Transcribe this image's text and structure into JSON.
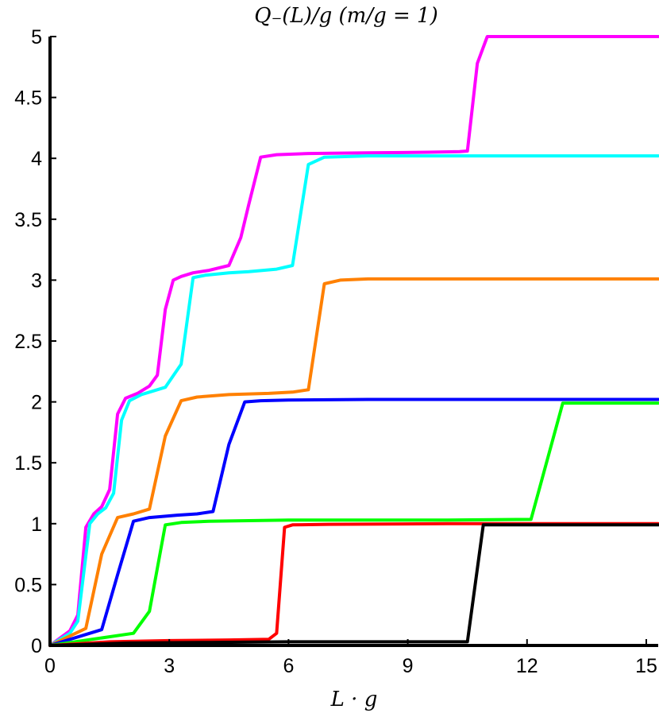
{
  "chart_data": {
    "type": "line",
    "title": "Q₋(L)/g (m/g = 1)",
    "xlabel": "L · g",
    "ylabel": "",
    "xlim": [
      0,
      15.3
    ],
    "ylim": [
      0,
      5
    ],
    "xticks": [
      0,
      3,
      6,
      9,
      12,
      15
    ],
    "yticks": [
      0,
      0.5,
      1,
      1.5,
      2,
      2.5,
      3,
      3.5,
      4,
      4.5,
      5
    ],
    "xtick_labels": [
      "0",
      "3",
      "6",
      "9",
      "12",
      "15"
    ],
    "ytick_labels": [
      "0",
      "0.5",
      "1",
      "1.5",
      "2",
      "2.5",
      "3",
      "3.5",
      "4",
      "4.5",
      "5"
    ],
    "grid": false,
    "legend": "none",
    "series": [
      {
        "color": "#ff00ff",
        "points": [
          [
            0,
            0
          ],
          [
            0.5,
            0.12
          ],
          [
            0.7,
            0.25
          ],
          [
            0.9,
            0.97
          ],
          [
            1.1,
            1.08
          ],
          [
            1.3,
            1.14
          ],
          [
            1.5,
            1.28
          ],
          [
            1.7,
            1.9
          ],
          [
            1.9,
            2.03
          ],
          [
            2.2,
            2.07
          ],
          [
            2.5,
            2.13
          ],
          [
            2.7,
            2.22
          ],
          [
            2.9,
            2.76
          ],
          [
            3.1,
            3.0
          ],
          [
            3.3,
            3.03
          ],
          [
            3.6,
            3.06
          ],
          [
            4.0,
            3.08
          ],
          [
            4.5,
            3.12
          ],
          [
            4.8,
            3.35
          ],
          [
            5.0,
            3.62
          ],
          [
            5.3,
            4.01
          ],
          [
            5.7,
            4.03
          ],
          [
            6.5,
            4.04
          ],
          [
            8.0,
            4.045
          ],
          [
            9.5,
            4.05
          ],
          [
            10.3,
            4.055
          ],
          [
            10.5,
            4.06
          ],
          [
            10.75,
            4.78
          ],
          [
            11.0,
            5.0
          ],
          [
            15.3,
            5.0
          ]
        ]
      },
      {
        "color": "#00ffff",
        "points": [
          [
            0,
            0
          ],
          [
            0.5,
            0.1
          ],
          [
            0.7,
            0.2
          ],
          [
            1.0,
            1.0
          ],
          [
            1.2,
            1.08
          ],
          [
            1.4,
            1.13
          ],
          [
            1.6,
            1.25
          ],
          [
            1.8,
            1.85
          ],
          [
            2.0,
            2.01
          ],
          [
            2.3,
            2.06
          ],
          [
            2.6,
            2.09
          ],
          [
            2.9,
            2.12
          ],
          [
            3.3,
            2.31
          ],
          [
            3.6,
            3.02
          ],
          [
            3.9,
            3.04
          ],
          [
            4.5,
            3.06
          ],
          [
            5.0,
            3.07
          ],
          [
            5.7,
            3.09
          ],
          [
            6.1,
            3.12
          ],
          [
            6.5,
            3.95
          ],
          [
            6.9,
            4.01
          ],
          [
            8.0,
            4.02
          ],
          [
            10.0,
            4.02
          ],
          [
            15.3,
            4.02
          ]
        ]
      },
      {
        "color": "#ff8000",
        "points": [
          [
            0,
            0
          ],
          [
            0.9,
            0.14
          ],
          [
            1.3,
            0.75
          ],
          [
            1.7,
            1.05
          ],
          [
            2.1,
            1.08
          ],
          [
            2.5,
            1.12
          ],
          [
            2.9,
            1.72
          ],
          [
            3.3,
            2.01
          ],
          [
            3.7,
            2.04
          ],
          [
            4.5,
            2.06
          ],
          [
            5.5,
            2.07
          ],
          [
            6.1,
            2.08
          ],
          [
            6.5,
            2.1
          ],
          [
            6.9,
            2.97
          ],
          [
            7.3,
            3.0
          ],
          [
            8.0,
            3.01
          ],
          [
            10.0,
            3.01
          ],
          [
            15.3,
            3.01
          ]
        ]
      },
      {
        "color": "#0000ff",
        "points": [
          [
            0,
            0
          ],
          [
            1.3,
            0.13
          ],
          [
            1.7,
            0.58
          ],
          [
            2.1,
            1.02
          ],
          [
            2.5,
            1.05
          ],
          [
            3.2,
            1.07
          ],
          [
            3.7,
            1.08
          ],
          [
            4.1,
            1.1
          ],
          [
            4.5,
            1.65
          ],
          [
            4.9,
            2.0
          ],
          [
            5.3,
            2.01
          ],
          [
            6.0,
            2.015
          ],
          [
            8.0,
            2.02
          ],
          [
            10.0,
            2.02
          ],
          [
            15.3,
            2.02
          ]
        ]
      },
      {
        "color": "#00ff00",
        "points": [
          [
            0,
            0
          ],
          [
            2.1,
            0.1
          ],
          [
            2.5,
            0.28
          ],
          [
            2.9,
            0.99
          ],
          [
            3.3,
            1.01
          ],
          [
            4.0,
            1.02
          ],
          [
            5.0,
            1.025
          ],
          [
            6.0,
            1.03
          ],
          [
            8.0,
            1.03
          ],
          [
            10.0,
            1.03
          ],
          [
            12.1,
            1.035
          ],
          [
            12.9,
            1.99
          ],
          [
            13.5,
            1.99
          ],
          [
            15.3,
            1.99
          ]
        ]
      },
      {
        "color": "#ff0000",
        "points": [
          [
            0,
            0
          ],
          [
            1.5,
            0.03
          ],
          [
            3.0,
            0.04
          ],
          [
            4.5,
            0.045
          ],
          [
            5.5,
            0.05
          ],
          [
            5.7,
            0.1
          ],
          [
            5.9,
            0.97
          ],
          [
            6.1,
            0.99
          ],
          [
            7.0,
            0.995
          ],
          [
            10.0,
            1.0
          ],
          [
            15.3,
            1.0
          ]
        ]
      },
      {
        "color": "#000000",
        "points": [
          [
            0,
            0
          ],
          [
            2.0,
            0.02
          ],
          [
            4.0,
            0.025
          ],
          [
            6.0,
            0.03
          ],
          [
            8.0,
            0.03
          ],
          [
            10.5,
            0.03
          ],
          [
            10.9,
            0.99
          ],
          [
            12.0,
            0.99
          ],
          [
            15.3,
            0.99
          ]
        ]
      }
    ]
  }
}
